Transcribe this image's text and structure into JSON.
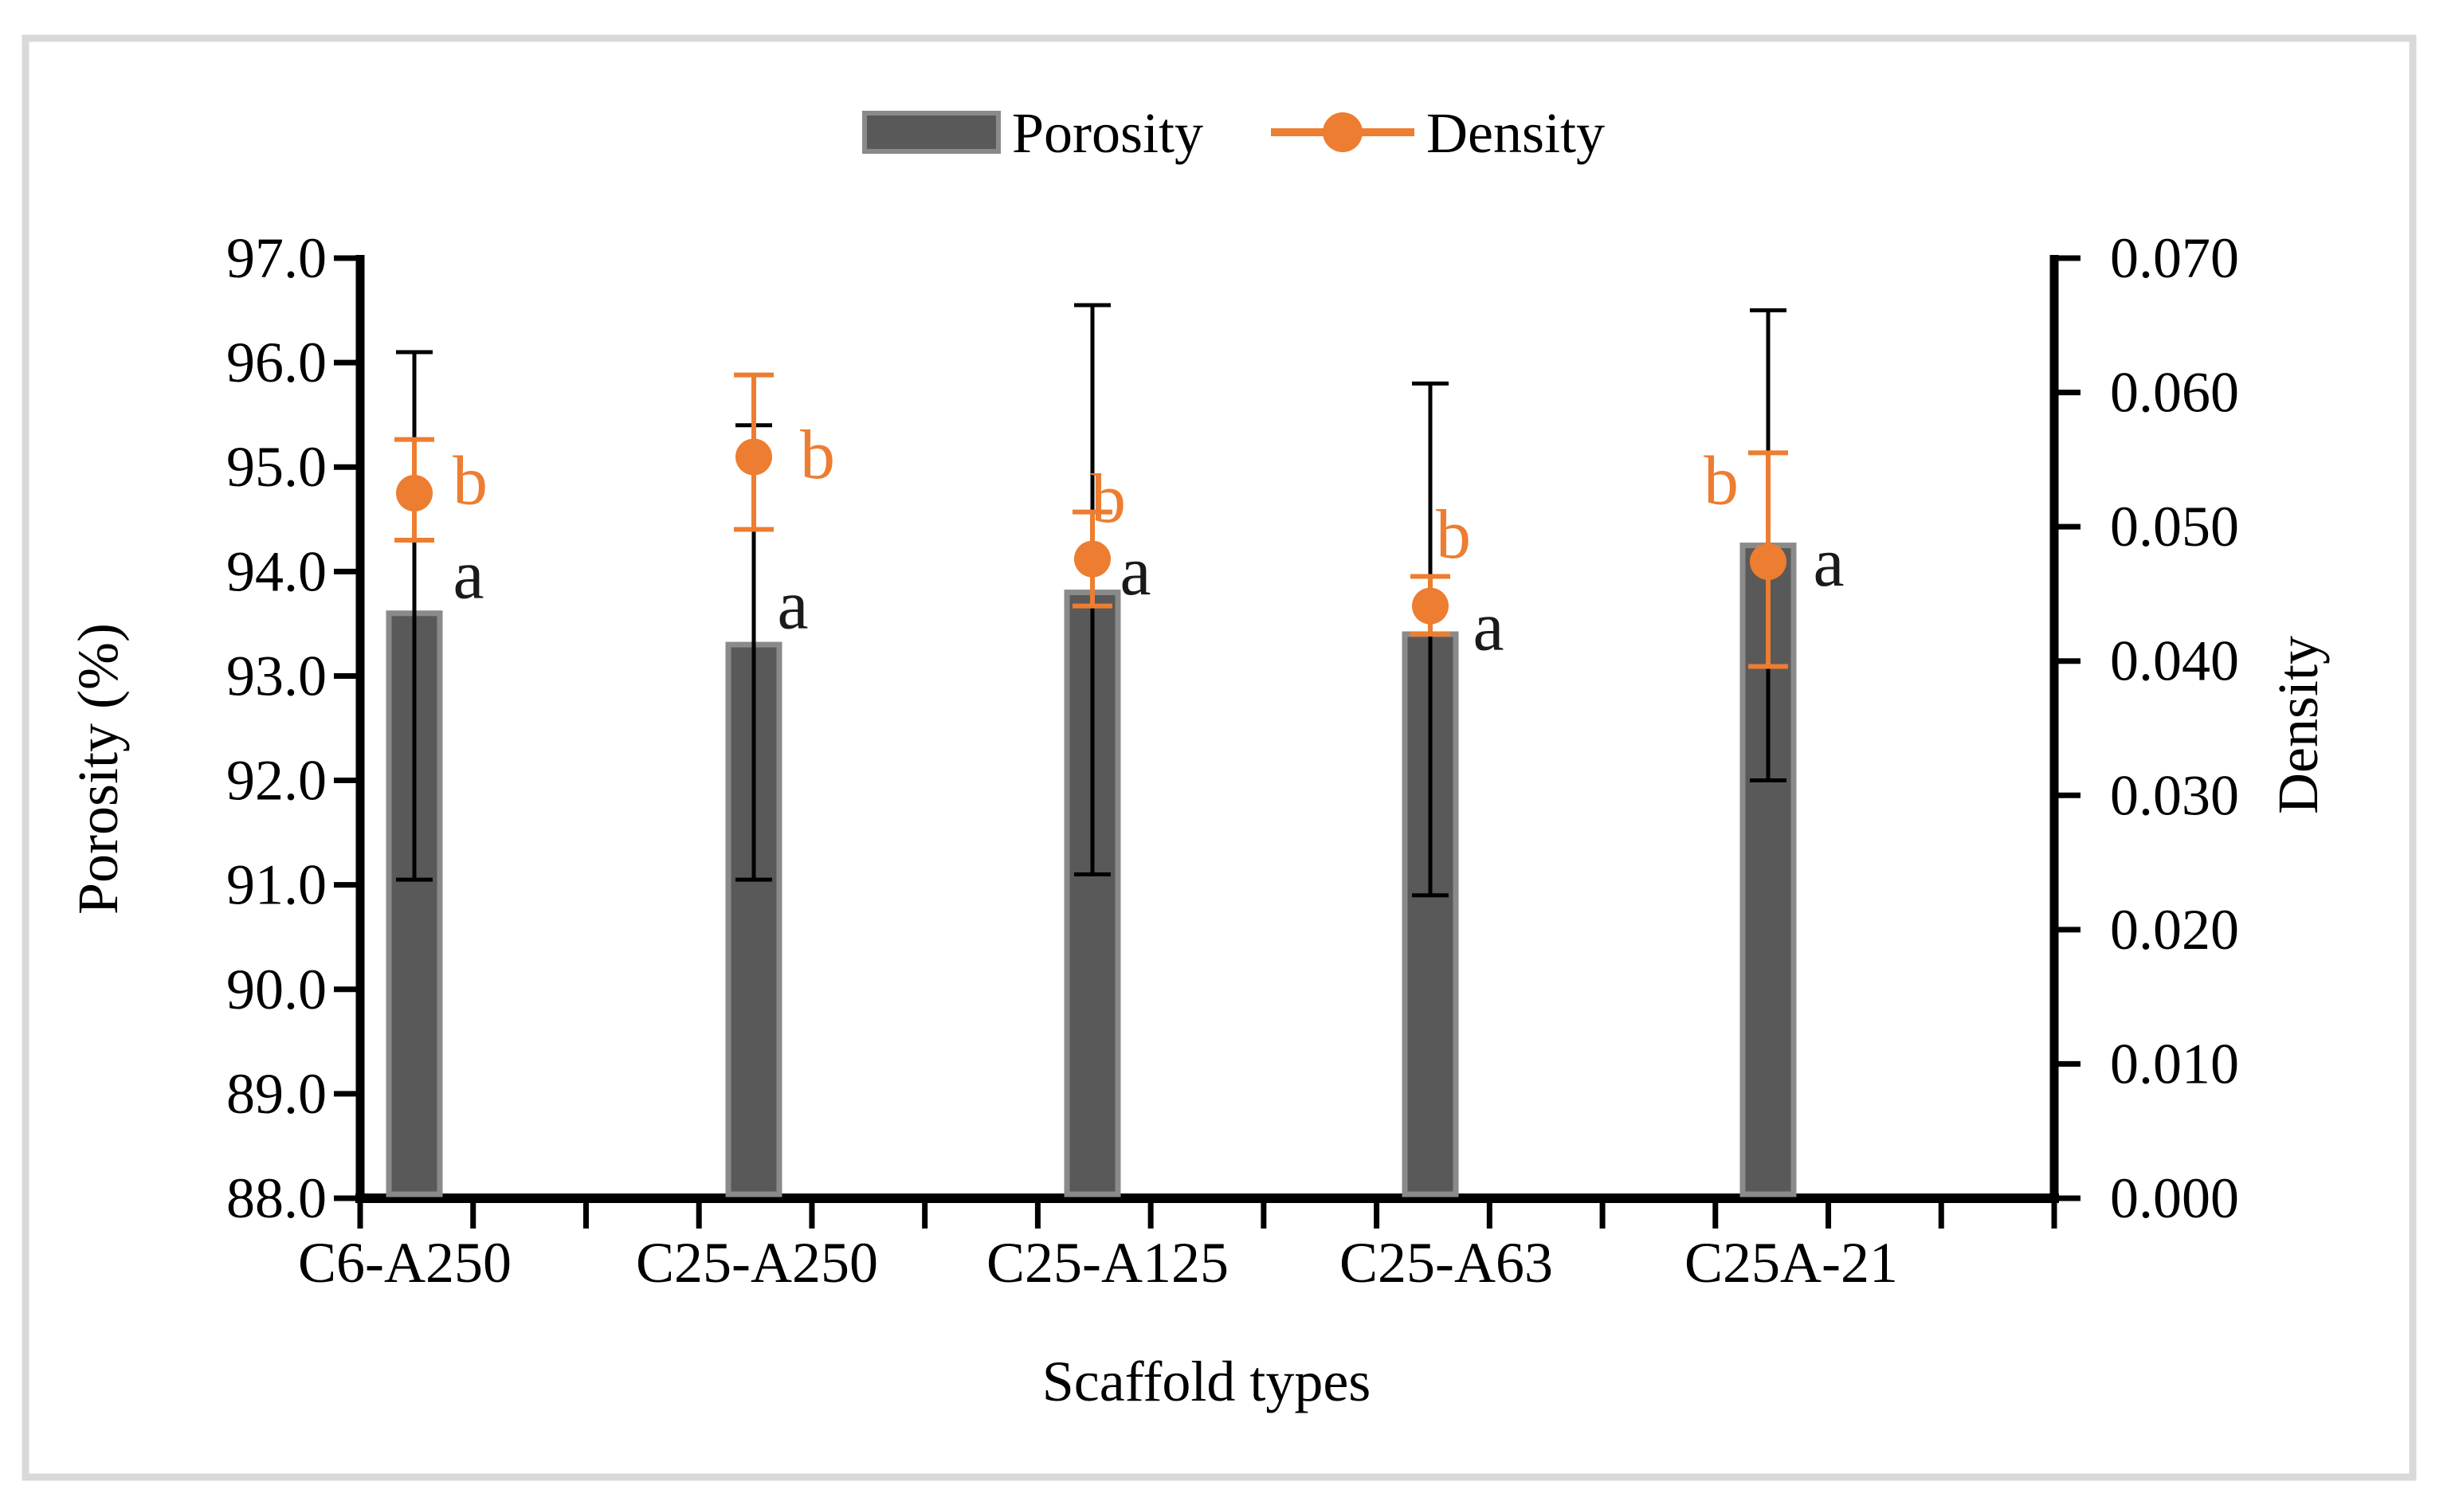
{
  "chart_data": {
    "type": "bar+scatter-combo",
    "title": "",
    "categories": [
      "C6-A250",
      "C25-A250",
      "C25-A125",
      "C25-A63",
      "C25A-21"
    ],
    "series": [
      {
        "name": "Porosity",
        "type": "bar",
        "axis": "left",
        "values": [
          93.6,
          93.3,
          93.8,
          93.4,
          94.25
        ],
        "error_upper": [
          96.1,
          95.4,
          96.55,
          95.8,
          96.5
        ],
        "error_lower": [
          91.05,
          91.05,
          91.1,
          90.9,
          92.0
        ],
        "point_labels": [
          "a",
          "a",
          "a",
          "a",
          "a"
        ],
        "color": "#595959",
        "border_color": "#8A8A8A",
        "error_color": "#000000"
      },
      {
        "name": "Density",
        "type": "scatter",
        "axis": "right",
        "values": [
          0.0525,
          0.0552,
          0.0476,
          0.0441,
          0.0474
        ],
        "error_upper": [
          0.0565,
          0.0613,
          0.0511,
          0.0463,
          0.0555
        ],
        "error_lower": [
          0.049,
          0.0498,
          0.0441,
          0.042,
          0.0396
        ],
        "point_labels": [
          "b",
          "b",
          "b",
          "b",
          "b"
        ],
        "color": "#ED7D31",
        "error_color": "#ED7D31"
      }
    ],
    "left_axis": {
      "title": "Porosity (%)",
      "min": 88.0,
      "max": 97.0,
      "step": 1.0,
      "tick_labels_top_to_bottom": [
        "97.0",
        "96.0",
        "95.0",
        "94.0",
        "93.0",
        "92.0",
        "91.0",
        "90.0",
        "89.0",
        "88.0"
      ]
    },
    "right_axis": {
      "title": "Density",
      "min": 0.0,
      "max": 0.07,
      "step": 0.01,
      "tick_labels_top_to_bottom": [
        "0.070",
        "0.060",
        "0.050",
        "0.040",
        "0.030",
        "0.020",
        "0.010",
        "0.000"
      ]
    },
    "x_axis": {
      "title": "Scaffold types",
      "minor_tick_count": 16
    },
    "legend": {
      "position": "top-center",
      "items": [
        {
          "label": "Porosity",
          "marker": "bar-swatch"
        },
        {
          "label": "Density",
          "marker": "line-circle"
        }
      ]
    },
    "grid": false,
    "background_color": "#ffffff",
    "frame_color": "#D9D9D9",
    "text_color": "#000000"
  }
}
